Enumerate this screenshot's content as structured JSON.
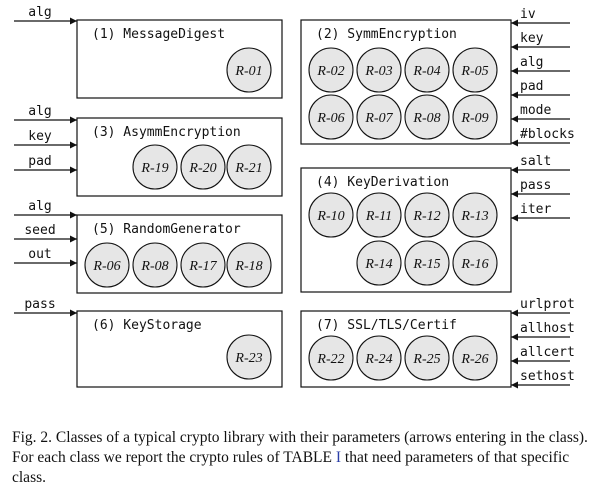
{
  "boxes": [
    {
      "id": "message-digest",
      "title": "(1) MessageDigest",
      "rules": [
        "R-01"
      ],
      "inputs": [
        "alg"
      ],
      "side": "left"
    },
    {
      "id": "symm-encryption",
      "title": "(2) SymmEncryption",
      "rules": [
        "R-02",
        "R-03",
        "R-04",
        "R-05",
        "R-06",
        "R-07",
        "R-08",
        "R-09"
      ],
      "inputs": [
        "iv",
        "key",
        "alg",
        "pad",
        "mode",
        "#blocks"
      ],
      "side": "right"
    },
    {
      "id": "asymm-encryption",
      "title": "(3) AsymmEncryption",
      "rules": [
        "R-19",
        "R-20",
        "R-21"
      ],
      "inputs": [
        "alg",
        "key",
        "pad"
      ],
      "side": "left"
    },
    {
      "id": "key-derivation",
      "title": "(4) KeyDerivation",
      "rules": [
        "R-10",
        "R-11",
        "R-12",
        "R-13",
        "R-14",
        "R-15",
        "R-16"
      ],
      "inputs": [
        "salt",
        "pass",
        "iter"
      ],
      "side": "right"
    },
    {
      "id": "random-generator",
      "title": "(5) RandomGenerator",
      "rules": [
        "R-06",
        "R-08",
        "R-17",
        "R-18"
      ],
      "inputs": [
        "alg",
        "seed",
        "out"
      ],
      "side": "left"
    },
    {
      "id": "key-storage",
      "title": "(6) KeyStorage",
      "rules": [
        "R-23"
      ],
      "inputs": [
        "pass"
      ],
      "side": "left"
    },
    {
      "id": "ssl-tls-certif",
      "title": "(7) SSL/TLS/Certif",
      "rules": [
        "R-22",
        "R-24",
        "R-25",
        "R-26"
      ],
      "inputs": [
        "urlprot",
        "allhost",
        "allcert",
        "sethost"
      ],
      "side": "right"
    }
  ],
  "caption": {
    "prefix": "Fig. 2.  Classes of a typical crypto library with their parameters (arrows entering in the class). For each class we report the crypto rules of TABLE ",
    "ref": "I",
    "suffix": " that need parameters of that specific class."
  }
}
